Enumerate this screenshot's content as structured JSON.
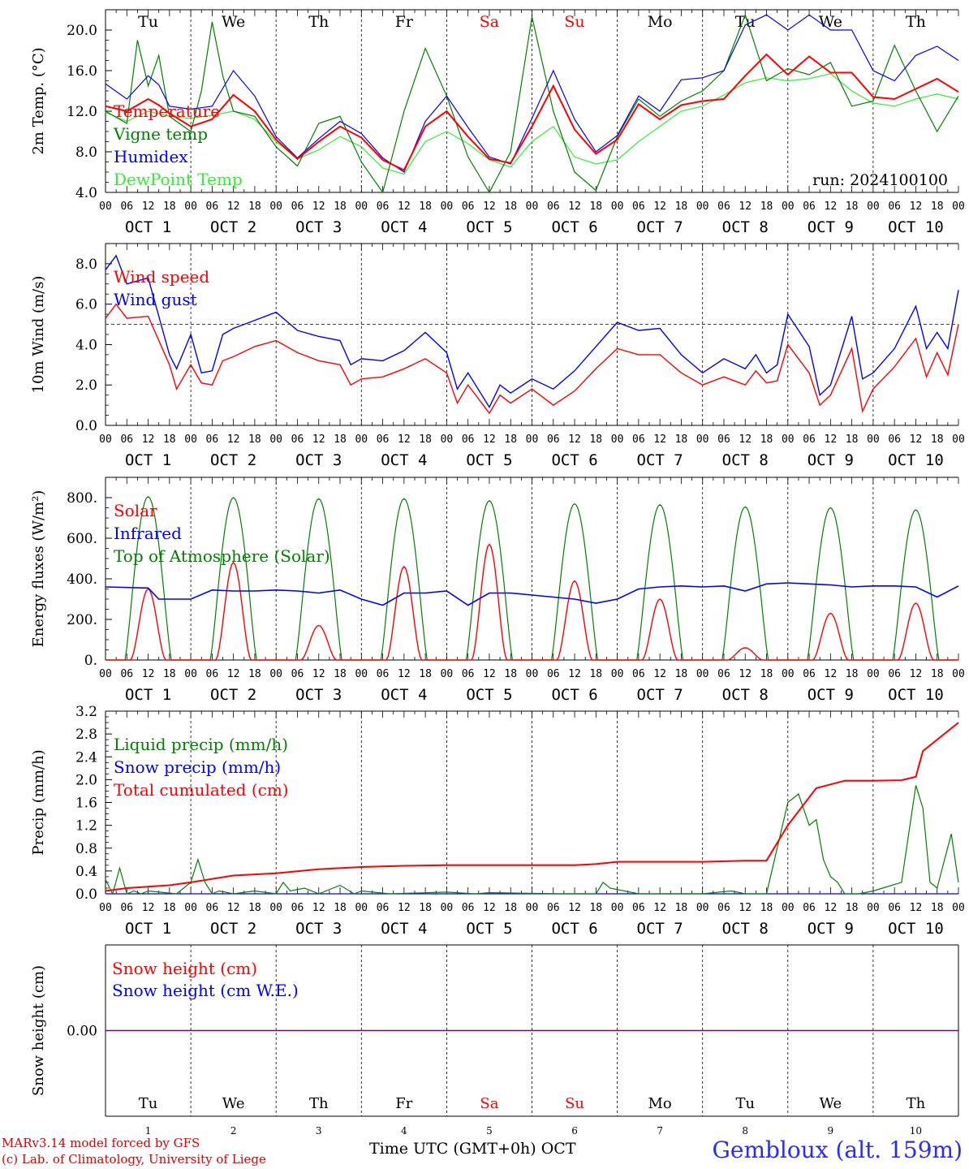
{
  "run_label": "run: 2024100100",
  "days": [
    "Tu",
    "We",
    "Th",
    "Fr",
    "Sa",
    "Su",
    "Mo",
    "Tu",
    "We",
    "Th"
  ],
  "weekend_days": [
    "Sa",
    "Su"
  ],
  "date_labels": [
    "OCT  1",
    "OCT  2",
    "OCT  3",
    "OCT  4",
    "OCT  5",
    "OCT  6",
    "OCT  7",
    "OCT  8",
    "OCT  9",
    "OCT 10"
  ],
  "hour_ticks": [
    "00",
    "06",
    "12",
    "18"
  ],
  "bottom_day_numbers": [
    "1",
    "2",
    "3",
    "4",
    "5",
    "6",
    "7",
    "8",
    "9",
    "10"
  ],
  "footer": {
    "credit_line1": "MARv3.14 model forced by GFS",
    "credit_line2": "(c) Lab. of Climatology, University of Liege",
    "xaxis_title": "Time UTC (GMT+0h) OCT",
    "location": "Gembloux (alt. 159m)"
  },
  "colors": {
    "red": "#ff0000",
    "green": "#008000",
    "blue": "#0000ff",
    "light_green": "#33ee33",
    "purple": "#800080",
    "weekend": "#ff0000"
  },
  "chart_data": [
    {
      "type": "line",
      "ylabel": "2m Temp. (°C)",
      "ylim": [
        4.0,
        22.0
      ],
      "yticks": [
        "4.0",
        "8.0",
        "12.0",
        "16.0",
        "20.0"
      ],
      "x_unit": "hours since 2024-10-01 00 UTC",
      "series": [
        {
          "name": "Temperature",
          "color": "red",
          "x": [
            0,
            6,
            12,
            15,
            18,
            24,
            30,
            36,
            42,
            48,
            54,
            60,
            66,
            72,
            78,
            84,
            90,
            96,
            102,
            108,
            114,
            120,
            126,
            132,
            138,
            144,
            150,
            156,
            162,
            168,
            174,
            180,
            186,
            192,
            198,
            204,
            210,
            216,
            222,
            228,
            234,
            240
          ],
          "y": [
            12.5,
            12.0,
            13.2,
            12.6,
            11.8,
            10.5,
            11.2,
            13.6,
            12.0,
            9.2,
            7.3,
            9.0,
            10.5,
            9.4,
            7.2,
            6.2,
            10.5,
            12.0,
            9.5,
            7.3,
            6.9,
            10.5,
            14.5,
            10.2,
            7.8,
            9.2,
            12.7,
            11.2,
            12.6,
            13.0,
            13.2,
            15.5,
            17.6,
            15.6,
            17.4,
            15.8,
            15.8,
            13.4,
            13.2,
            14.2,
            15.2,
            13.9
          ]
        },
        {
          "name": "Vigne temp",
          "color": "green",
          "x": [
            0,
            6,
            9,
            12,
            15,
            18,
            24,
            27,
            30,
            33,
            36,
            42,
            48,
            54,
            60,
            66,
            72,
            78,
            84,
            90,
            96,
            102,
            108,
            114,
            120,
            126,
            132,
            138,
            144,
            150,
            156,
            162,
            168,
            174,
            180,
            186,
            192,
            198,
            204,
            210,
            216,
            222,
            228,
            234,
            240
          ],
          "y": [
            12.0,
            10.8,
            19.0,
            14.5,
            17.5,
            11.5,
            10.0,
            14.0,
            20.8,
            15.5,
            12.0,
            11.5,
            8.5,
            6.6,
            10.8,
            11.5,
            7.0,
            4.0,
            12.0,
            18.2,
            13.5,
            7.5,
            4.0,
            8.0,
            21.3,
            12.0,
            6.0,
            4.2,
            9.5,
            13.2,
            11.5,
            13.0,
            14.0,
            16.0,
            21.5,
            15.0,
            16.2,
            15.6,
            16.8,
            12.5,
            13.0,
            18.5,
            14.0,
            10.0,
            13.5
          ]
        },
        {
          "name": "Humidex",
          "color": "blue",
          "x": [
            0,
            6,
            12,
            15,
            18,
            24,
            30,
            36,
            42,
            48,
            54,
            60,
            66,
            72,
            78,
            84,
            90,
            96,
            102,
            108,
            114,
            120,
            126,
            132,
            138,
            144,
            150,
            156,
            162,
            168,
            174,
            180,
            186,
            192,
            198,
            204,
            210,
            216,
            222,
            228,
            234,
            240
          ],
          "y": [
            14.7,
            13.2,
            15.5,
            14.6,
            12.5,
            12.2,
            12.5,
            16.0,
            13.5,
            9.5,
            7.4,
            9.3,
            11.0,
            9.8,
            7.4,
            6.0,
            11.0,
            13.5,
            10.4,
            7.5,
            6.8,
            11.3,
            16.0,
            11.2,
            8.0,
            9.6,
            13.5,
            12.0,
            15.1,
            15.3,
            16.0,
            20.5,
            21.5,
            20.0,
            21.5,
            20.0,
            20.0,
            16.0,
            15.0,
            17.5,
            18.4,
            17.0
          ]
        },
        {
          "name": "DewPoint Temp",
          "color": "light_green",
          "x": [
            0,
            6,
            12,
            18,
            24,
            30,
            36,
            42,
            48,
            54,
            60,
            66,
            72,
            78,
            84,
            90,
            96,
            102,
            108,
            114,
            120,
            126,
            132,
            138,
            144,
            150,
            156,
            162,
            168,
            174,
            180,
            186,
            192,
            198,
            204,
            210,
            216,
            222,
            228,
            234,
            240
          ],
          "y": [
            11.9,
            11.0,
            12.0,
            11.5,
            11.3,
            11.6,
            12.0,
            11.2,
            9.0,
            7.3,
            8.2,
            9.5,
            8.5,
            6.4,
            5.8,
            9.0,
            10.0,
            8.8,
            7.2,
            6.5,
            9.0,
            10.5,
            7.5,
            6.8,
            7.2,
            9.0,
            10.5,
            12.0,
            12.5,
            13.6,
            14.8,
            15.3,
            15.0,
            15.2,
            15.7,
            14.0,
            12.8,
            12.5,
            13.2,
            13.7,
            13.2
          ]
        }
      ]
    },
    {
      "type": "line",
      "ylabel": "10m Wind (m/s)",
      "ylim": [
        0.0,
        9.0
      ],
      "yticks": [
        "0.0",
        "2.0",
        "4.0",
        "6.0",
        "8.0"
      ],
      "reference_line": 5.0,
      "x_unit": "hours since 2024-10-01 00 UTC",
      "series": [
        {
          "name": "Wind speed",
          "color": "red",
          "x": [
            0,
            3,
            6,
            12,
            18,
            20,
            24,
            27,
            30,
            33,
            36,
            42,
            48,
            54,
            60,
            66,
            69,
            72,
            78,
            84,
            90,
            96,
            99,
            102,
            108,
            111,
            114,
            120,
            126,
            132,
            138,
            144,
            150,
            156,
            162,
            168,
            174,
            180,
            183,
            186,
            189,
            192,
            198,
            201,
            204,
            210,
            213,
            216,
            222,
            228,
            231,
            234,
            237,
            240
          ],
          "y": [
            5.3,
            6.0,
            5.3,
            5.4,
            3.0,
            1.8,
            3.0,
            2.1,
            2.0,
            3.2,
            3.4,
            3.9,
            4.2,
            3.6,
            3.2,
            3.0,
            2.0,
            2.3,
            2.4,
            2.8,
            3.3,
            2.6,
            1.1,
            2.0,
            0.6,
            1.5,
            1.1,
            1.8,
            1.0,
            1.7,
            2.8,
            3.8,
            3.5,
            3.5,
            2.6,
            2.0,
            2.4,
            2.0,
            2.7,
            2.1,
            2.2,
            4.0,
            2.6,
            1.0,
            1.5,
            3.8,
            0.7,
            1.8,
            2.9,
            4.3,
            2.4,
            3.6,
            2.5,
            5.0
          ]
        },
        {
          "name": "Wind gust",
          "color": "blue",
          "x": [
            0,
            3,
            6,
            12,
            18,
            20,
            24,
            27,
            30,
            33,
            36,
            42,
            48,
            54,
            60,
            66,
            69,
            72,
            78,
            84,
            90,
            96,
            99,
            102,
            108,
            111,
            114,
            120,
            126,
            132,
            138,
            144,
            150,
            156,
            162,
            168,
            174,
            180,
            183,
            186,
            189,
            192,
            198,
            201,
            204,
            210,
            213,
            216,
            222,
            228,
            231,
            234,
            237,
            240
          ],
          "y": [
            7.7,
            8.4,
            7.0,
            7.3,
            3.5,
            2.8,
            4.5,
            2.6,
            2.7,
            4.5,
            4.8,
            5.2,
            5.6,
            4.7,
            4.4,
            4.2,
            3.0,
            3.3,
            3.2,
            3.7,
            4.6,
            3.6,
            1.8,
            2.6,
            0.9,
            2.0,
            1.6,
            2.3,
            1.8,
            2.7,
            3.9,
            5.1,
            4.7,
            4.8,
            3.5,
            2.6,
            3.3,
            2.8,
            3.5,
            2.6,
            3.0,
            5.5,
            3.9,
            1.5,
            2.0,
            5.4,
            2.3,
            2.6,
            3.8,
            5.9,
            3.8,
            4.6,
            3.8,
            6.7
          ]
        }
      ]
    },
    {
      "type": "line",
      "ylabel": "Energy fluxes (W/m²)",
      "ylim": [
        0,
        900
      ],
      "yticks": [
        "0.",
        "200.",
        "400.",
        "600.",
        "800."
      ],
      "x_unit": "hours since 2024-10-01 00 UTC",
      "series": [
        {
          "name": "Solar",
          "color": "red",
          "daily_peak": [
            350,
            480,
            170,
            460,
            570,
            390,
            300,
            60,
            230,
            280
          ]
        },
        {
          "name": "Infrared",
          "color": "blue",
          "x": [
            0,
            12,
            15,
            24,
            30,
            36,
            42,
            48,
            54,
            60,
            66,
            72,
            78,
            84,
            90,
            96,
            102,
            108,
            114,
            120,
            126,
            132,
            138,
            144,
            150,
            156,
            162,
            168,
            174,
            180,
            186,
            192,
            198,
            204,
            210,
            216,
            222,
            228,
            234,
            240
          ],
          "y": [
            360,
            355,
            300,
            300,
            345,
            340,
            340,
            345,
            340,
            330,
            345,
            300,
            270,
            330,
            330,
            340,
            270,
            330,
            330,
            320,
            310,
            300,
            280,
            300,
            350,
            360,
            365,
            360,
            365,
            340,
            375,
            380,
            375,
            370,
            360,
            365,
            365,
            360,
            310,
            365
          ]
        },
        {
          "name": "Top of Atmosphere (Solar)",
          "color": "green",
          "daily_peak": [
            805,
            800,
            795,
            795,
            785,
            770,
            765,
            755,
            750,
            740
          ]
        }
      ]
    },
    {
      "type": "line",
      "ylabel": "Precip (mm/h)",
      "ylim": [
        0.0,
        3.2
      ],
      "yticks": [
        "0.0",
        "0.4",
        "0.8",
        "1.2",
        "1.6",
        "2.0",
        "2.4",
        "2.8",
        "3.2"
      ],
      "x_unit": "hours since 2024-10-01 00 UTC",
      "series": [
        {
          "name": "Liquid precip (mm/h)",
          "color": "green",
          "x": [
            0,
            2,
            4,
            6,
            8,
            10,
            12,
            20,
            24,
            26,
            28,
            30,
            32,
            36,
            42,
            48,
            50,
            52,
            56,
            60,
            66,
            70,
            72,
            80,
            96,
            104,
            108,
            128,
            138,
            140,
            142,
            150,
            168,
            176,
            180,
            186,
            192,
            195,
            198,
            200,
            202,
            204,
            206,
            208,
            212,
            216,
            224,
            228,
            230,
            232,
            234,
            238,
            240
          ],
          "y": [
            0.25,
            0,
            0.45,
            0,
            0.05,
            0,
            0.05,
            0,
            0.2,
            0.6,
            0.2,
            0,
            0.05,
            0,
            0.05,
            0,
            0.2,
            0.05,
            0.1,
            0,
            0.15,
            0,
            0.05,
            0,
            0.03,
            0,
            0.02,
            0,
            0,
            0.2,
            0.1,
            0,
            0,
            0.05,
            0,
            0,
            1.6,
            1.75,
            1.2,
            1.3,
            0.6,
            0.3,
            0.2,
            0,
            0,
            0.05,
            0.2,
            1.9,
            1.5,
            0.2,
            0.1,
            1.05,
            0.2
          ]
        },
        {
          "name": "Snow precip (mm/h)",
          "color": "blue",
          "x": [
            0,
            240
          ],
          "y": [
            0,
            0
          ]
        },
        {
          "name": "Total cumulated (cm)",
          "color": "red",
          "x": [
            0,
            6,
            18,
            24,
            36,
            48,
            60,
            72,
            84,
            96,
            108,
            120,
            132,
            138,
            144,
            156,
            168,
            180,
            186,
            192,
            200,
            208,
            216,
            224,
            228,
            230,
            240
          ],
          "y": [
            0.05,
            0.1,
            0.15,
            0.2,
            0.32,
            0.36,
            0.43,
            0.47,
            0.49,
            0.5,
            0.5,
            0.5,
            0.5,
            0.52,
            0.56,
            0.56,
            0.56,
            0.58,
            0.58,
            1.2,
            1.85,
            1.98,
            1.98,
            1.99,
            2.05,
            2.5,
            3.0
          ]
        }
      ]
    },
    {
      "type": "line",
      "ylabel": "Snow height (cm)",
      "yticks": [
        "0.00"
      ],
      "x_unit": "hours since 2024-10-01 00 UTC",
      "series": [
        {
          "name": "Snow height (cm)",
          "color": "red",
          "x": [
            0,
            240
          ],
          "y": [
            0,
            0
          ]
        },
        {
          "name": "Snow height (cm W.E.)",
          "color": "blue",
          "x": [
            0,
            240
          ],
          "y": [
            0,
            0
          ]
        }
      ]
    }
  ]
}
